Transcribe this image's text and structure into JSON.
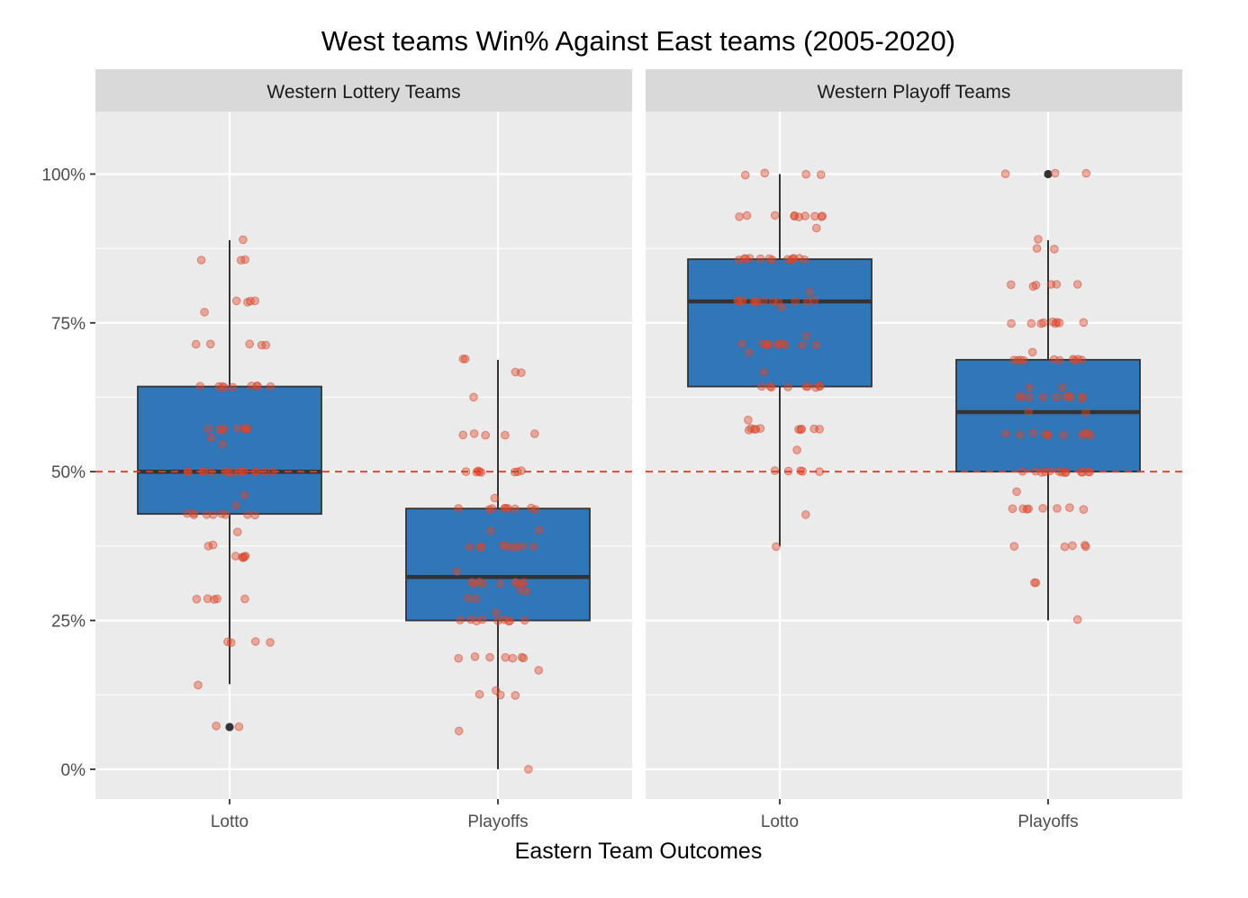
{
  "chart_data": {
    "type": "boxplot",
    "title": "West teams Win% Against East teams (2005-2020)",
    "xlabel": "Eastern Team Outcomes",
    "ylabel": "",
    "y_tick_labels": [
      "0%",
      "25%",
      "50%",
      "75%",
      "100%"
    ],
    "y_ticks": [
      0,
      0.25,
      0.5,
      0.75,
      1.0
    ],
    "ylim": [
      -0.05,
      1.105
    ],
    "reference_line": 0.5,
    "categories": [
      "Lotto",
      "Playoffs"
    ],
    "facets": [
      {
        "label": "Western Lottery Teams",
        "boxes": [
          {
            "category": "Lotto",
            "q1": 0.429,
            "median": 0.5,
            "q3": 0.643,
            "whisker_low": 0.143,
            "whisker_high": 0.889,
            "outliers": [
              0.071
            ],
            "points": [
              0.889,
              0.857,
              0.857,
              0.857,
              0.786,
              0.786,
              0.786,
              0.786,
              0.769,
              0.714,
              0.714,
              0.714,
              0.714,
              0.714,
              0.643,
              0.643,
              0.643,
              0.643,
              0.643,
              0.643,
              0.643,
              0.643,
              0.643,
              0.571,
              0.571,
              0.571,
              0.571,
              0.571,
              0.571,
              0.571,
              0.571,
              0.571,
              0.556,
              0.545,
              0.5,
              0.5,
              0.5,
              0.5,
              0.5,
              0.5,
              0.5,
              0.5,
              0.5,
              0.5,
              0.5,
              0.5,
              0.5,
              0.5,
              0.5,
              0.462,
              0.444,
              0.429,
              0.429,
              0.429,
              0.429,
              0.429,
              0.429,
              0.429,
              0.429,
              0.429,
              0.4,
              0.375,
              0.375,
              0.357,
              0.357,
              0.357,
              0.357,
              0.357,
              0.286,
              0.286,
              0.286,
              0.286,
              0.286,
              0.214,
              0.214,
              0.214,
              0.214,
              0.143,
              0.071,
              0.071
            ]
          },
          {
            "category": "Playoffs",
            "q1": 0.25,
            "median": 0.323,
            "q3": 0.438,
            "whisker_low": 0.0,
            "whisker_high": 0.688,
            "outliers": [],
            "points": [
              0.688,
              0.688,
              0.667,
              0.667,
              0.625,
              0.563,
              0.563,
              0.563,
              0.563,
              0.563,
              0.5,
              0.5,
              0.5,
              0.5,
              0.5,
              0.5,
              0.5,
              0.5,
              0.455,
              0.438,
              0.438,
              0.438,
              0.438,
              0.438,
              0.438,
              0.438,
              0.438,
              0.438,
              0.4,
              0.4,
              0.375,
              0.375,
              0.375,
              0.375,
              0.375,
              0.375,
              0.375,
              0.375,
              0.375,
              0.333,
              0.316,
              0.313,
              0.313,
              0.313,
              0.313,
              0.313,
              0.313,
              0.313,
              0.313,
              0.3,
              0.3,
              0.286,
              0.286,
              0.263,
              0.25,
              0.25,
              0.25,
              0.25,
              0.25,
              0.25,
              0.25,
              0.25,
              0.25,
              0.188,
              0.188,
              0.188,
              0.188,
              0.188,
              0.188,
              0.188,
              0.167,
              0.133,
              0.125,
              0.125,
              0.125,
              0.063,
              0.0
            ]
          }
        ]
      },
      {
        "label": "Western Playoff Teams",
        "boxes": [
          {
            "category": "Lotto",
            "q1": 0.643,
            "median": 0.786,
            "q3": 0.857,
            "whisker_low": 0.375,
            "whisker_high": 1.0,
            "outliers": [],
            "points": [
              1.0,
              1.0,
              1.0,
              1.0,
              0.929,
              0.929,
              0.929,
              0.929,
              0.929,
              0.929,
              0.929,
              0.929,
              0.929,
              0.929,
              0.909,
              0.857,
              0.857,
              0.857,
              0.857,
              0.857,
              0.857,
              0.857,
              0.857,
              0.857,
              0.857,
              0.857,
              0.857,
              0.857,
              0.8,
              0.786,
              0.786,
              0.786,
              0.786,
              0.786,
              0.786,
              0.786,
              0.786,
              0.786,
              0.786,
              0.786,
              0.786,
              0.786,
              0.778,
              0.727,
              0.714,
              0.714,
              0.714,
              0.714,
              0.714,
              0.714,
              0.714,
              0.714,
              0.714,
              0.714,
              0.714,
              0.7,
              0.667,
              0.643,
              0.643,
              0.643,
              0.643,
              0.643,
              0.643,
              0.643,
              0.643,
              0.643,
              0.588,
              0.571,
              0.571,
              0.571,
              0.571,
              0.571,
              0.571,
              0.571,
              0.571,
              0.571,
              0.571,
              0.538,
              0.5,
              0.5,
              0.5,
              0.5,
              0.5,
              0.429,
              0.375
            ]
          },
          {
            "category": "Playoffs",
            "q1": 0.5,
            "median": 0.6,
            "q3": 0.688,
            "whisker_low": 0.25,
            "whisker_high": 0.889,
            "outliers": [
              1.0
            ],
            "points": [
              1.0,
              1.0,
              1.0,
              0.889,
              0.875,
              0.875,
              0.813,
              0.813,
              0.813,
              0.813,
              0.813,
              0.813,
              0.75,
              0.75,
              0.75,
              0.75,
              0.75,
              0.75,
              0.75,
              0.75,
              0.75,
              0.7,
              0.688,
              0.688,
              0.688,
              0.688,
              0.688,
              0.688,
              0.688,
              0.688,
              0.688,
              0.688,
              0.643,
              0.643,
              0.625,
              0.625,
              0.625,
              0.625,
              0.625,
              0.625,
              0.625,
              0.625,
              0.625,
              0.625,
              0.6,
              0.6,
              0.563,
              0.563,
              0.563,
              0.563,
              0.563,
              0.563,
              0.563,
              0.563,
              0.563,
              0.563,
              0.563,
              0.5,
              0.5,
              0.5,
              0.5,
              0.5,
              0.5,
              0.5,
              0.5,
              0.5,
              0.5,
              0.5,
              0.5,
              0.5,
              0.467,
              0.438,
              0.438,
              0.438,
              0.438,
              0.438,
              0.438,
              0.438,
              0.438,
              0.375,
              0.375,
              0.375,
              0.375,
              0.375,
              0.313,
              0.313,
              0.25
            ]
          }
        ]
      }
    ],
    "colors": {
      "box_fill": "#3077ba",
      "point": "#e1472c",
      "reference_line": "#e03a2b",
      "panel": "#ebebeb",
      "strip": "#d9d9d9"
    }
  }
}
